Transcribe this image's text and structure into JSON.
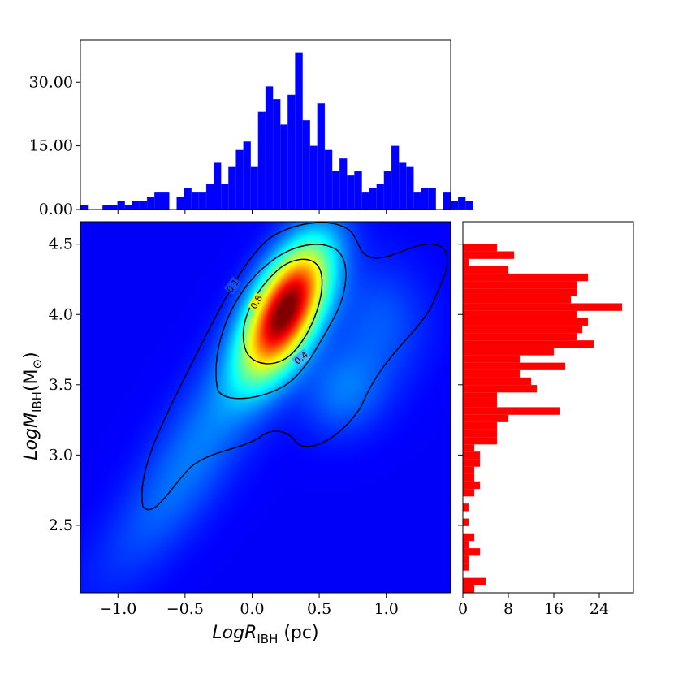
{
  "chart_data": [
    {
      "panel": "top-histogram",
      "type": "bar",
      "color": "#0000ff",
      "xlim": [
        -1.28,
        1.48
      ],
      "ylim": [
        0,
        40
      ],
      "yticks": [
        0,
        15,
        30
      ],
      "ytick_labels": [
        "0.00",
        "15.00",
        "30.00"
      ],
      "bin_start": -1.28,
      "bin_width": 0.0552,
      "counts": [
        1,
        0,
        0,
        1,
        1,
        2,
        1,
        2,
        2,
        3,
        4,
        4,
        0,
        3,
        5,
        4,
        4,
        6,
        11,
        6,
        10,
        14,
        16,
        10,
        23,
        29,
        26,
        20,
        27,
        37,
        21,
        15,
        25,
        14,
        9,
        12,
        8,
        9,
        4,
        5,
        6,
        9,
        15,
        11,
        10,
        4,
        5,
        5,
        0,
        4,
        2,
        3,
        2
      ]
    },
    {
      "panel": "right-histogram",
      "type": "bar",
      "orientation": "horizontal",
      "color": "#ff0000",
      "xlim": [
        0,
        30
      ],
      "xticks": [
        0,
        8,
        16,
        24
      ],
      "xtick_labels": [
        "0",
        "8",
        "16",
        "24"
      ],
      "ylim": [
        2.02,
        4.66
      ],
      "bin_start": 2.02,
      "bin_width": 0.0528,
      "counts": [
        2,
        4,
        0,
        1,
        1,
        3,
        1,
        2,
        0,
        1,
        0,
        1,
        0,
        2,
        3,
        2,
        2,
        3,
        3,
        2,
        6,
        6,
        6,
        8,
        17,
        6,
        6,
        13,
        12,
        10,
        18,
        10,
        16,
        23,
        20,
        21,
        22,
        20,
        28,
        19,
        20,
        20,
        22,
        8,
        1,
        9,
        6,
        0,
        0,
        0
      ]
    },
    {
      "panel": "main-density",
      "type": "heatmap",
      "colormap": "jet",
      "xlabel_main": "LogR",
      "xlabel_sub": "IBH",
      "xlabel_unit": " (pc)",
      "ylabel_main": "LogM",
      "ylabel_sub": "IBH",
      "ylabel_paren_open": "(M",
      "ylabel_paren_sub": "⊙",
      "ylabel_paren_close": ")",
      "xlim": [
        -1.28,
        1.48
      ],
      "ylim": [
        2.02,
        4.66
      ],
      "xticks": [
        -1.0,
        -0.5,
        0.0,
        0.5,
        1.0
      ],
      "xtick_labels": [
        "−1.0",
        "−0.5",
        "0.0",
        "0.5",
        "1.0"
      ],
      "yticks": [
        2.5,
        3.0,
        3.5,
        4.0,
        4.5
      ],
      "ytick_labels": [
        "2.5",
        "3.0",
        "3.5",
        "4.0",
        "4.5"
      ],
      "contour_levels": [
        "0.1",
        "0.4",
        "0.8"
      ],
      "components": [
        {
          "mx": 0.25,
          "my": 4.03,
          "sx": 0.22,
          "sy": 0.33,
          "rho": 0.58,
          "w": 1.0
        },
        {
          "mx": 0.68,
          "my": 3.45,
          "sx": 0.22,
          "sy": 0.22,
          "rho": 0.1,
          "w": 0.13
        },
        {
          "mx": 0.95,
          "my": 3.95,
          "sx": 0.25,
          "sy": 0.3,
          "rho": 0.0,
          "w": 0.1
        },
        {
          "mx": -0.35,
          "my": 3.2,
          "sx": 0.38,
          "sy": 0.55,
          "rho": 0.8,
          "w": 0.12
        },
        {
          "mx": -0.7,
          "my": 2.55,
          "sx": 0.45,
          "sy": 0.45,
          "rho": 0.8,
          "w": 0.05
        }
      ]
    }
  ]
}
